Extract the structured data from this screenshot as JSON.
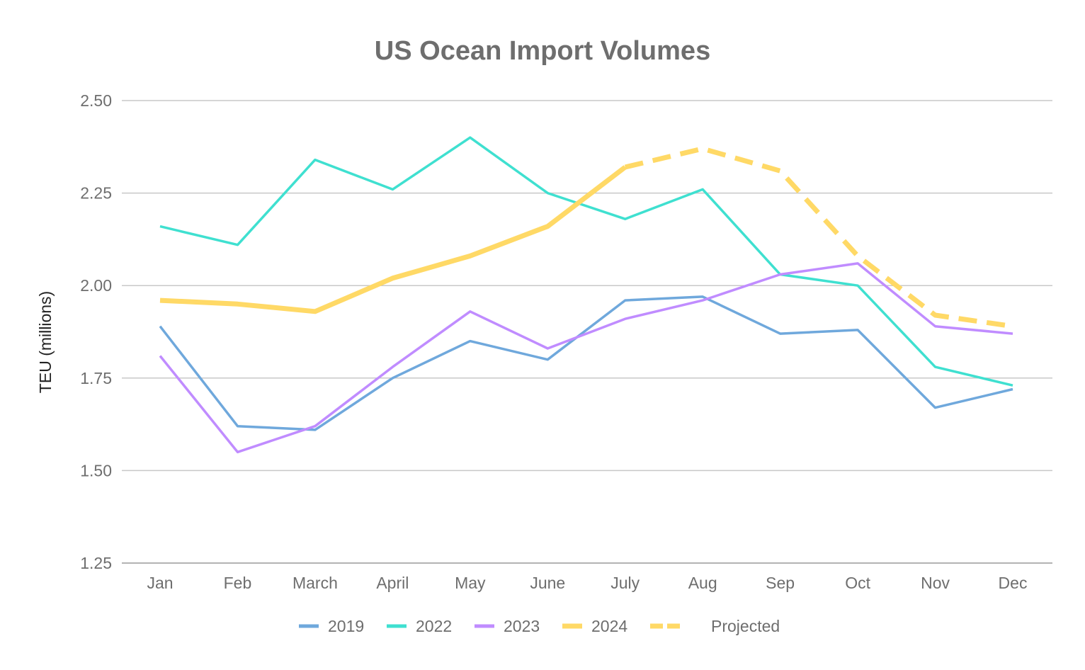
{
  "chart_data": {
    "type": "line",
    "title": "US Ocean Import Volumes",
    "xlabel": "",
    "ylabel": "TEU (millions)",
    "categories": [
      "Jan",
      "Feb",
      "March",
      "April",
      "May",
      "June",
      "July",
      "Aug",
      "Sep",
      "Oct",
      "Nov",
      "Dec"
    ],
    "ylim": [
      1.25,
      2.5
    ],
    "yticks": [
      "1.25",
      "1.50",
      "1.75",
      "2.00",
      "2.25",
      "2.50"
    ],
    "grid": true,
    "legend_position": "bottom",
    "series": [
      {
        "name": "2019",
        "color": "#6fa8dc",
        "style": "solid",
        "values": [
          1.89,
          1.62,
          1.61,
          1.75,
          1.85,
          1.8,
          1.96,
          1.97,
          1.87,
          1.88,
          1.67,
          1.72
        ]
      },
      {
        "name": "2022",
        "color": "#3fe0d0",
        "style": "solid",
        "values": [
          2.16,
          2.11,
          2.34,
          2.26,
          2.4,
          2.25,
          2.18,
          2.26,
          2.03,
          2.0,
          1.78,
          1.73
        ]
      },
      {
        "name": "2023",
        "color": "#c08cff",
        "style": "solid",
        "values": [
          1.81,
          1.55,
          1.62,
          1.78,
          1.93,
          1.83,
          1.91,
          1.96,
          2.03,
          2.06,
          1.89,
          1.87
        ]
      },
      {
        "name": "2024",
        "color": "#ffd966",
        "style": "solid",
        "values": [
          1.96,
          1.95,
          1.93,
          2.02,
          2.08,
          2.16,
          2.32,
          null,
          null,
          null,
          null,
          null
        ]
      },
      {
        "name": "Projected",
        "color": "#ffd966",
        "style": "dashed",
        "values": [
          null,
          null,
          null,
          null,
          null,
          null,
          2.32,
          2.37,
          2.31,
          2.08,
          1.92,
          1.89
        ]
      }
    ]
  }
}
